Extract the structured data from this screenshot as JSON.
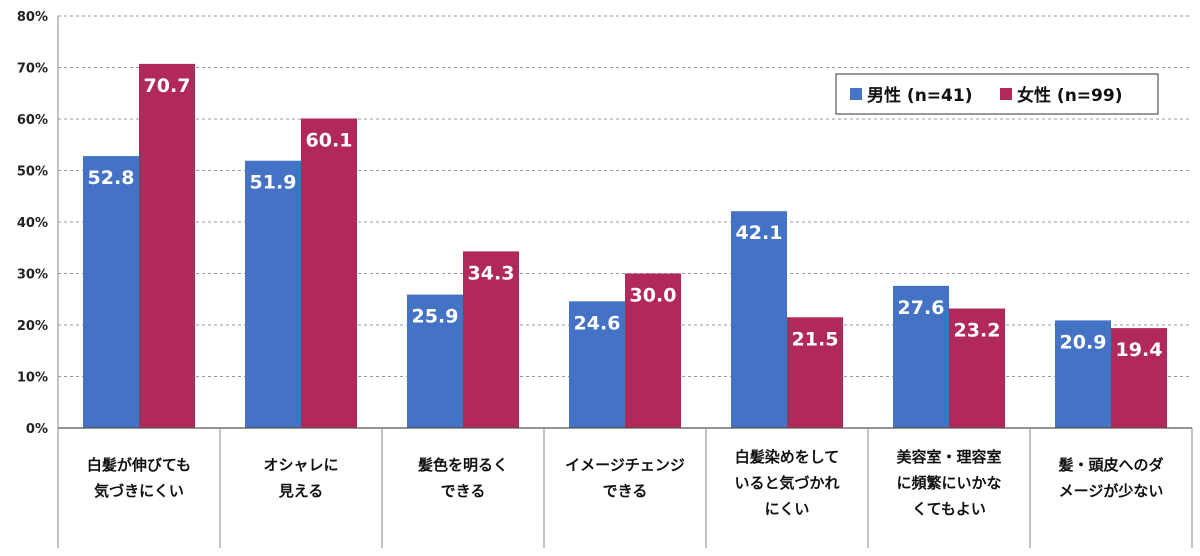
{
  "chart_data": {
    "type": "bar",
    "categories": [
      [
        "白髪が伸びても",
        "気づきにくい"
      ],
      [
        "オシャレに",
        "見える"
      ],
      [
        "髪色を明るく",
        "できる"
      ],
      [
        "イメージチェンジ",
        "できる"
      ],
      [
        "白髪染めをして",
        "いると気づかれ",
        "にくい"
      ],
      [
        "美容室・理容室",
        "に頻繁にいかな",
        "くてもよい"
      ],
      [
        "髪・頭皮へのダ",
        "メージが少ない"
      ]
    ],
    "series": [
      {
        "name": "男性 (n=41)",
        "color": "#4472C4",
        "values": [
          52.8,
          51.9,
          25.9,
          24.6,
          42.1,
          27.6,
          20.9
        ]
      },
      {
        "name": "女性 (n=99)",
        "color": "#B0295A",
        "values": [
          70.7,
          60.1,
          34.3,
          30.0,
          21.5,
          23.2,
          19.4
        ]
      }
    ],
    "ylim": [
      0,
      80
    ],
    "yticks": [
      0,
      10,
      20,
      30,
      40,
      50,
      60,
      70,
      80
    ],
    "ytick_suffix": "%",
    "grid": true,
    "legend": "top-right"
  }
}
